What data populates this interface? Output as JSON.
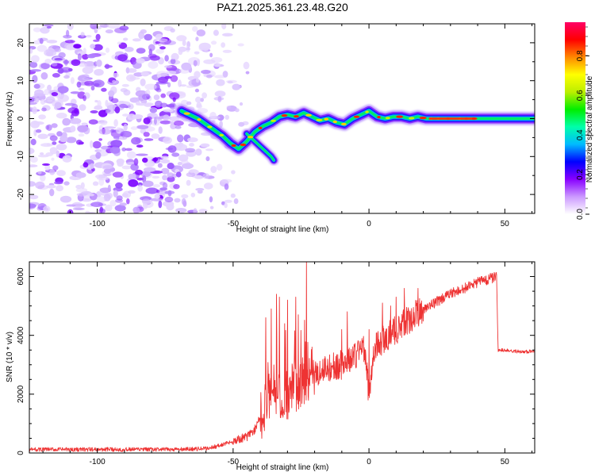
{
  "title": "PAZ1.2025.361.23.48.G20",
  "chart_data": [
    {
      "type": "heatmap",
      "xlabel": "Height of straight line (km)",
      "ylabel": "Frequency (Hz)",
      "xlim": [
        -125,
        61
      ],
      "ylim": [
        -25,
        25
      ],
      "xticks": [
        -100,
        -50,
        0,
        50
      ],
      "yticks": [
        -20,
        -10,
        0,
        10,
        20
      ],
      "ridge": {
        "x": [
          -69,
          -66,
          -63,
          -60,
          -57,
          -54,
          -51,
          -48,
          -45,
          -42,
          -39,
          -36,
          -33,
          -30,
          -27,
          -24,
          -21,
          -18,
          -15,
          -12,
          -9,
          -6,
          -3,
          0,
          3,
          6,
          9,
          12,
          15,
          18,
          21,
          25,
          30,
          40,
          50,
          61
        ],
        "y": [
          2,
          1,
          0,
          -1.5,
          -3,
          -4.5,
          -6.5,
          -8,
          -6,
          -3.5,
          -2,
          -1,
          0.5,
          1,
          0.5,
          1.5,
          0.5,
          -0.5,
          0,
          -1,
          -1.5,
          0,
          1,
          2,
          0.5,
          0,
          0.5,
          0.5,
          0,
          0.5,
          0,
          0,
          0,
          0,
          0,
          0
        ],
        "branch": {
          "x": [
            -45,
            -42,
            -39,
            -36,
            -35
          ],
          "y": [
            -4,
            -6,
            -8,
            -10,
            -11
          ]
        }
      },
      "noise_region_x": [
        -125,
        -50
      ],
      "colorbar": {
        "label": "Normalized spectral amplitude",
        "range": [
          0,
          0.97
        ],
        "ticks": [
          0.0,
          0.2,
          0.4,
          0.6,
          0.8
        ],
        "tick_labels": [
          "0.0",
          "0.2",
          "0.4",
          "0.6",
          "0.8"
        ],
        "colors": [
          "#ffffff",
          "#cc99ff",
          "#8800ff",
          "#0000ff",
          "#00bbff",
          "#00ffaa",
          "#00ee00",
          "#bbee00",
          "#ffff00",
          "#ff8800",
          "#ff0000",
          "#ff0066"
        ]
      }
    },
    {
      "type": "line",
      "xlabel": "Height of straight line (km)",
      "ylabel": "SNR (10 * v/v)",
      "xlim": [
        -125,
        61
      ],
      "ylim": [
        0,
        6500
      ],
      "xticks": [
        -100,
        -50,
        0,
        50
      ],
      "yticks": [
        0,
        2000,
        4000,
        6000
      ],
      "color": "#ee3333",
      "envelope": {
        "x": [
          -125,
          -70,
          -60,
          -55,
          -50,
          -45,
          -42,
          -40,
          -38,
          -35,
          -32,
          -30,
          -28,
          -25,
          -22,
          -20,
          -15,
          -10,
          -5,
          -2,
          0,
          2,
          5,
          10,
          20,
          30,
          40,
          47,
          47.5,
          50,
          55,
          61
        ],
        "y": [
          120,
          120,
          150,
          250,
          400,
          550,
          800,
          1200,
          1800,
          2200,
          2000,
          2000,
          2200,
          2400,
          2700,
          2700,
          2900,
          3000,
          3300,
          3700,
          2000,
          3600,
          3800,
          4200,
          4900,
          5400,
          5800,
          6000,
          3500,
          3500,
          3450,
          3450
        ]
      },
      "spikes": [
        {
          "x": -38,
          "y": 4600
        },
        {
          "x": -36,
          "y": 4900
        },
        {
          "x": -34,
          "y": 5400
        },
        {
          "x": -33,
          "y": 5300
        },
        {
          "x": -31,
          "y": 4400
        },
        {
          "x": -30,
          "y": 5200
        },
        {
          "x": -27,
          "y": 5300
        },
        {
          "x": -26,
          "y": 4700
        },
        {
          "x": -23,
          "y": 6500
        },
        {
          "x": -21,
          "y": 3600
        },
        {
          "x": -10,
          "y": 4200
        },
        {
          "x": -8,
          "y": 4800
        },
        {
          "x": 0,
          "y": 4200
        },
        {
          "x": 5,
          "y": 5100
        },
        {
          "x": 8,
          "y": 5000
        },
        {
          "x": 10,
          "y": 5300
        },
        {
          "x": 13,
          "y": 5600
        },
        {
          "x": 18,
          "y": 5600
        }
      ]
    }
  ]
}
